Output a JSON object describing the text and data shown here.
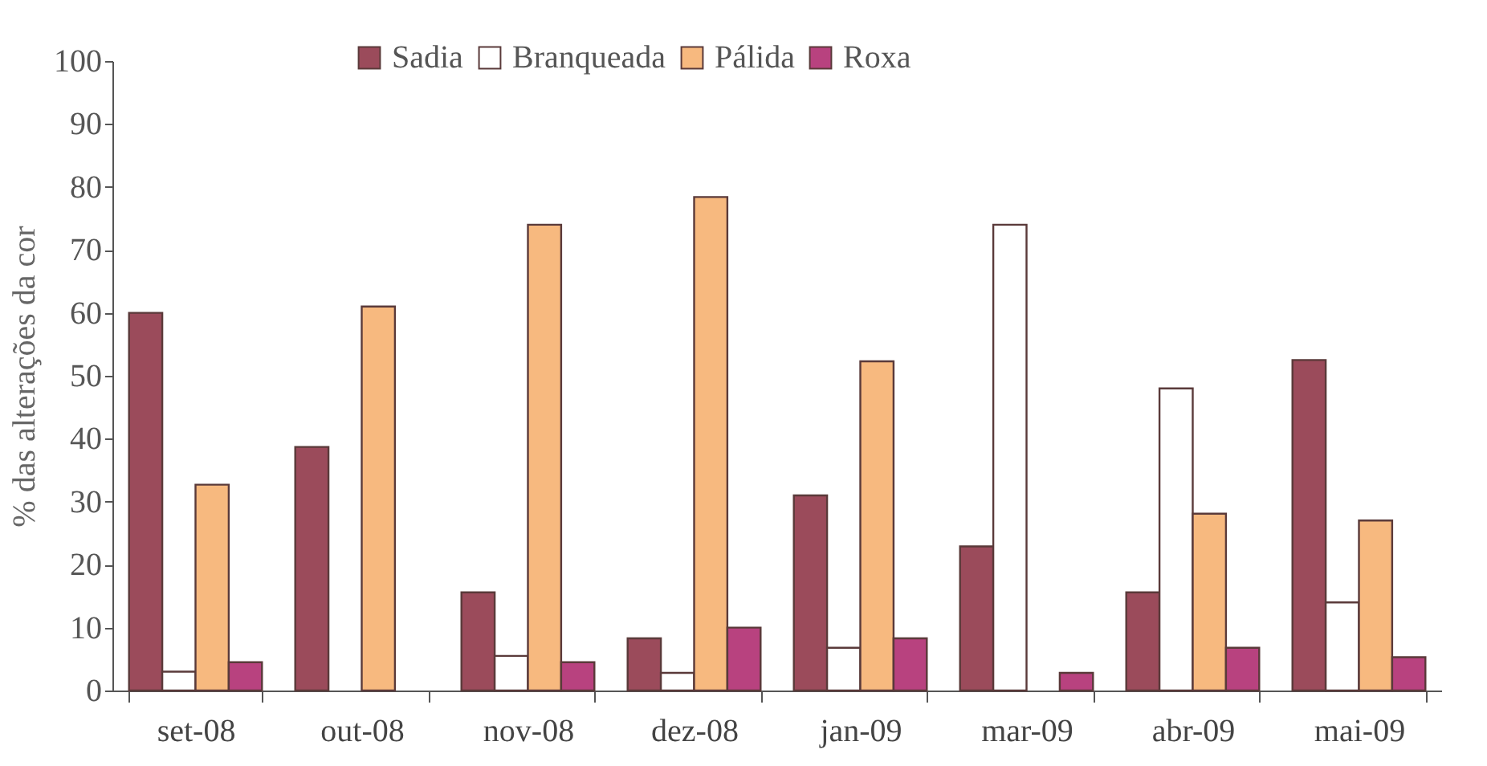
{
  "chart_data": {
    "type": "bar",
    "ylabel": "% das alterações da cor",
    "categories": [
      "set-08",
      "out-08",
      "nov-08",
      "dez-08",
      "jan-09",
      "mar-09",
      "abr-09",
      "mai-09"
    ],
    "series": [
      {
        "name": "Sadia",
        "color": "#9b4b5b",
        "values": [
          60,
          38.7,
          15.6,
          8.3,
          31,
          22.9,
          15.6,
          52.5
        ]
      },
      {
        "name": "Branqueada",
        "color": "#ffffff",
        "values": [
          3,
          0,
          5.5,
          2.8,
          6.8,
          74,
          48,
          14
        ]
      },
      {
        "name": "Pálida",
        "color": "#f7b97f",
        "values": [
          32.7,
          61,
          74,
          78.4,
          52.3,
          0,
          28.1,
          27
        ]
      },
      {
        "name": "Roxa",
        "color": "#b8427f",
        "values": [
          4.5,
          0,
          4.5,
          10,
          8.3,
          2.8,
          6.8,
          5.3
        ]
      }
    ],
    "ylim": [
      0,
      100
    ],
    "yticks": [
      0,
      10,
      20,
      30,
      40,
      50,
      60,
      70,
      80,
      90,
      100
    ],
    "legend": "top"
  }
}
